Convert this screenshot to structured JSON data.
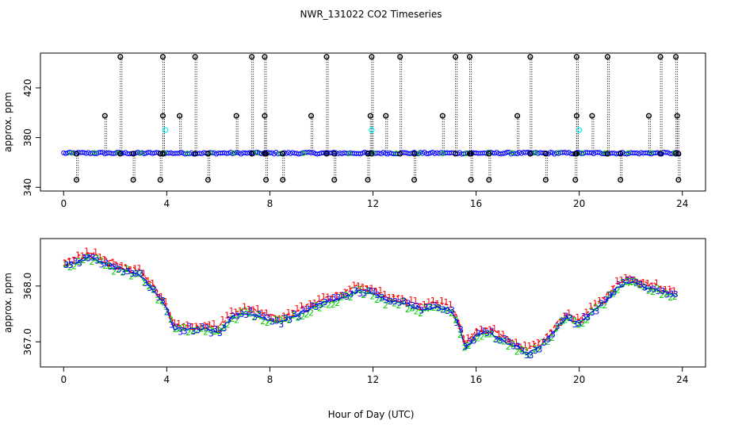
{
  "title": "NWR_131022  CO2 Timeseries",
  "xlabel": "Hour of Day (UTC)",
  "colors": {
    "axes": "#000000",
    "flag_markers": "#000000",
    "main_series": "#0000ff",
    "highlight": "#00ffff",
    "series1": "#ff0000",
    "series2": "#00cd00",
    "series3": "#0000ff"
  },
  "chart_data": [
    {
      "type": "scatter",
      "ylabel": "approx. ppm",
      "xlim": [
        -0.9,
        24.9
      ],
      "ylim": [
        337,
        448
      ],
      "x_ticks": [
        0,
        4,
        8,
        12,
        16,
        20,
        24
      ],
      "x_tick_labels": [
        "0",
        "4",
        "8",
        "12",
        "16",
        "20",
        "24"
      ],
      "y_ticks": [
        340,
        380,
        420
      ],
      "y_tick_labels": [
        "340",
        "380",
        "420"
      ],
      "baseline_ppm": 367.5,
      "flag_values": {
        "high": [
          445,
          397.5
        ],
        "low": 346
      },
      "high_points_x": [
        2.2,
        3.85,
        5.1,
        7.3,
        7.8,
        10.2,
        11.95,
        13.05,
        15.2,
        15.75,
        18.1,
        19.9,
        21.1,
        23.15,
        23.75
      ],
      "mid_points_x": [
        1.6,
        3.85,
        4.5,
        6.7,
        7.8,
        9.6,
        11.9,
        12.5,
        14.7,
        17.6,
        19.9,
        20.5,
        22.7,
        23.8
      ],
      "low_points_x": [
        0.5,
        2.7,
        3.75,
        5.6,
        7.85,
        8.5,
        10.5,
        11.8,
        13.6,
        15.8,
        16.5,
        18.7,
        19.85,
        21.6,
        23.85
      ],
      "highlight_points": [
        {
          "x": 3.95,
          "y": 386
        },
        {
          "x": 11.95,
          "y": 386
        },
        {
          "x": 20.0,
          "y": 386
        }
      ],
      "series": [
        {
          "name": "",
          "values_desc": "continuous series near baseline"
        }
      ]
    },
    {
      "type": "scatter",
      "ylabel": "approx. ppm",
      "xlim": [
        -0.9,
        24.9
      ],
      "ylim": [
        366.55,
        368.85
      ],
      "x_ticks": [
        0,
        4,
        8,
        12,
        16,
        20,
        24
      ],
      "x_tick_labels": [
        "0",
        "4",
        "8",
        "12",
        "16",
        "20",
        "24"
      ],
      "y_ticks": [
        367.0,
        368.0
      ],
      "y_tick_labels": [
        "367.0",
        "368.0"
      ],
      "marker_labels": [
        "1",
        "2",
        "3"
      ],
      "profile": [
        {
          "x": 0.0,
          "y": 368.4
        },
        {
          "x": 0.5,
          "y": 368.45
        },
        {
          "x": 1.0,
          "y": 368.55
        },
        {
          "x": 1.5,
          "y": 368.45
        },
        {
          "x": 2.0,
          "y": 368.35
        },
        {
          "x": 2.5,
          "y": 368.3
        },
        {
          "x": 3.0,
          "y": 368.2
        },
        {
          "x": 3.5,
          "y": 367.95
        },
        {
          "x": 4.0,
          "y": 367.6
        },
        {
          "x": 4.3,
          "y": 367.25
        },
        {
          "x": 5.0,
          "y": 367.25
        },
        {
          "x": 5.5,
          "y": 367.25
        },
        {
          "x": 6.0,
          "y": 367.2
        },
        {
          "x": 6.5,
          "y": 367.45
        },
        {
          "x": 7.0,
          "y": 367.55
        },
        {
          "x": 7.5,
          "y": 367.5
        },
        {
          "x": 8.0,
          "y": 367.4
        },
        {
          "x": 8.5,
          "y": 367.4
        },
        {
          "x": 9.0,
          "y": 367.5
        },
        {
          "x": 10.0,
          "y": 367.7
        },
        {
          "x": 11.0,
          "y": 367.85
        },
        {
          "x": 11.5,
          "y": 367.95
        },
        {
          "x": 12.0,
          "y": 367.9
        },
        {
          "x": 12.5,
          "y": 367.75
        },
        {
          "x": 13.0,
          "y": 367.75
        },
        {
          "x": 13.5,
          "y": 367.65
        },
        {
          "x": 14.0,
          "y": 367.6
        },
        {
          "x": 14.5,
          "y": 367.65
        },
        {
          "x": 15.0,
          "y": 367.6
        },
        {
          "x": 15.3,
          "y": 367.35
        },
        {
          "x": 15.6,
          "y": 366.9
        },
        {
          "x": 16.0,
          "y": 367.15
        },
        {
          "x": 16.5,
          "y": 367.2
        },
        {
          "x": 17.0,
          "y": 367.05
        },
        {
          "x": 17.5,
          "y": 366.95
        },
        {
          "x": 18.0,
          "y": 366.8
        },
        {
          "x": 18.5,
          "y": 366.95
        },
        {
          "x": 19.0,
          "y": 367.2
        },
        {
          "x": 19.5,
          "y": 367.45
        },
        {
          "x": 20.0,
          "y": 367.35
        },
        {
          "x": 20.5,
          "y": 367.55
        },
        {
          "x": 21.0,
          "y": 367.75
        },
        {
          "x": 21.5,
          "y": 368.0
        },
        {
          "x": 22.0,
          "y": 368.1
        },
        {
          "x": 22.5,
          "y": 368.0
        },
        {
          "x": 23.0,
          "y": 367.95
        },
        {
          "x": 23.8,
          "y": 367.85
        }
      ],
      "series": [
        {
          "name": "1",
          "offset": 0.06
        },
        {
          "name": "2",
          "offset": -0.04
        },
        {
          "name": "3",
          "offset": -0.02
        }
      ]
    }
  ]
}
